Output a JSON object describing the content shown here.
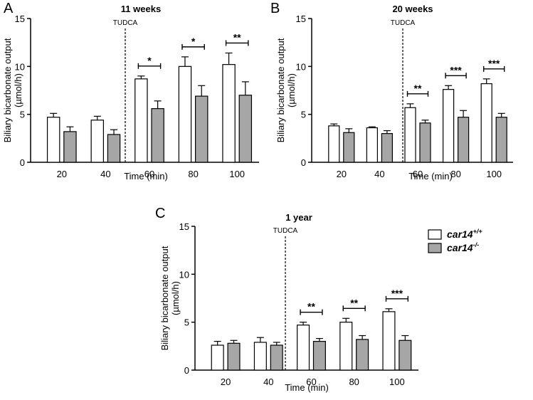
{
  "legend": {
    "wt_base": "car14",
    "wt_sup": "+/+",
    "ko_base": "car14",
    "ko_sup": "-/-",
    "colors": {
      "wt": "#ffffff",
      "ko": "#a6a6a6"
    }
  },
  "chart_data": [
    {
      "type": "bar",
      "panel": "A",
      "title": "11 weeks",
      "xlabel": "Time (min)",
      "ylabel": "Biliary bicarbonate output",
      "ylabel_unit": "(µmol/h)",
      "ylim": [
        0,
        15
      ],
      "yticks": [
        "0",
        "5",
        "10",
        "15"
      ],
      "categories": [
        "20",
        "40",
        "60",
        "80",
        "100"
      ],
      "series": [
        {
          "name": "car14+/+",
          "values": [
            4.7,
            4.4,
            8.7,
            10.0,
            10.2
          ],
          "errors": [
            0.4,
            0.4,
            0.3,
            1.0,
            1.2
          ]
        },
        {
          "name": "car14-/-",
          "values": [
            3.2,
            2.9,
            5.6,
            6.9,
            7.0
          ],
          "errors": [
            0.5,
            0.5,
            0.8,
            1.1,
            1.4
          ]
        }
      ],
      "annotation": "TUDCA",
      "significance": [
        "",
        "",
        "*",
        "*",
        "**"
      ]
    },
    {
      "type": "bar",
      "panel": "B",
      "title": "20 weeks",
      "xlabel": "Time (min)",
      "ylabel": "Biliary bicarbonate output",
      "ylabel_unit": "(µmol/h)",
      "ylim": [
        0,
        15
      ],
      "yticks": [
        "0",
        "5",
        "10",
        "15"
      ],
      "categories": [
        "20",
        "40",
        "60",
        "80",
        "100"
      ],
      "series": [
        {
          "name": "car14+/+",
          "values": [
            3.8,
            3.6,
            5.7,
            7.6,
            8.2
          ],
          "errors": [
            0.2,
            0.1,
            0.4,
            0.4,
            0.5
          ]
        },
        {
          "name": "car14-/-",
          "values": [
            3.1,
            3.0,
            4.1,
            4.7,
            4.7
          ],
          "errors": [
            0.4,
            0.3,
            0.3,
            0.7,
            0.4
          ]
        }
      ],
      "annotation": "TUDCA",
      "significance": [
        "",
        "",
        "**",
        "***",
        "***"
      ]
    },
    {
      "type": "bar",
      "panel": "C",
      "title": "1 year",
      "xlabel": "Time (min)",
      "ylabel": "Biliary bicarbonate output",
      "ylabel_unit": "(µmol/h)",
      "ylim": [
        0,
        15
      ],
      "yticks": [
        "0",
        "5",
        "10",
        "15"
      ],
      "categories": [
        "20",
        "40",
        "60",
        "80",
        "100"
      ],
      "series": [
        {
          "name": "car14+/+",
          "values": [
            2.6,
            2.9,
            4.7,
            5.0,
            6.1
          ],
          "errors": [
            0.4,
            0.5,
            0.3,
            0.4,
            0.3
          ]
        },
        {
          "name": "car14-/-",
          "values": [
            2.8,
            2.6,
            3.0,
            3.2,
            3.1
          ],
          "errors": [
            0.3,
            0.3,
            0.3,
            0.4,
            0.5
          ]
        }
      ],
      "annotation": "TUDCA",
      "significance": [
        "",
        "",
        "**",
        "**",
        "***"
      ]
    }
  ]
}
